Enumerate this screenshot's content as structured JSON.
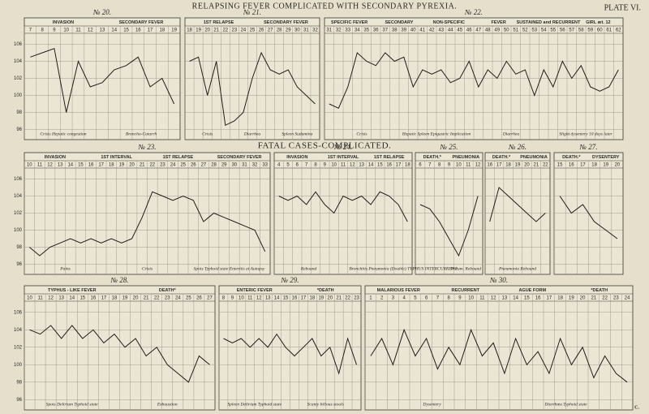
{
  "title": "RELAPSING FEVER COMPLICATED WITH SECONDARY PYREXIA.",
  "plate": "PLATE VI.",
  "subtitle": "FATAL CASES-COMPLICATED.",
  "signature": "H. V. C.",
  "chart_data": [
    {
      "type": "line",
      "title": "№ 20.",
      "phases": [
        "INVASION",
        "SECONDARY FEVER"
      ],
      "categories": [
        "7",
        "8",
        "9",
        "10",
        "11",
        "12",
        "13",
        "14",
        "15",
        "16",
        "17",
        "18",
        "19"
      ],
      "values": [
        104.5,
        105,
        105.5,
        98,
        104,
        101,
        101.5,
        103,
        103.5,
        104.5,
        101,
        102,
        99
      ],
      "annotations": [
        "Crisis  Hepatic congestion",
        "Broncho-Catarrh"
      ],
      "ylim": [
        95,
        107
      ],
      "yticks": [
        96,
        98,
        100,
        102,
        104,
        106
      ],
      "ytick_labels": true
    },
    {
      "type": "line",
      "title": "№ 21.",
      "phases": [
        "1ST RELAPSE",
        "SECONDARY FEVER"
      ],
      "categories": [
        "18",
        "19",
        "20",
        "21",
        "22",
        "23",
        "24",
        "25",
        "26",
        "27",
        "28",
        "29",
        "30",
        "31",
        "32"
      ],
      "values": [
        104,
        104.5,
        100,
        104,
        96.5,
        97,
        98,
        102,
        105,
        103,
        102.5,
        103,
        101,
        100,
        99
      ],
      "annotations": [
        "Crisis",
        "Diarrhea",
        "Spleen  Sudamina"
      ],
      "ylim": [
        95,
        107
      ],
      "yticks": [
        96,
        98,
        100,
        102,
        104,
        106
      ],
      "ytick_labels": false
    },
    {
      "type": "line",
      "title": "№ 22.",
      "phases": [
        "SPECIFIC FEVER",
        "SECONDARY",
        "NON-SPECIFIC",
        "FEVER",
        "SUSTAINED and RECURRENT",
        "GIRL æt. 12"
      ],
      "categories": [
        "31",
        "32",
        "33",
        "34",
        "35",
        "36",
        "37",
        "38",
        "39",
        "40",
        "41",
        "42",
        "43",
        "44",
        "45",
        "46",
        "47",
        "48",
        "49",
        "50",
        "51",
        "52",
        "53",
        "54",
        "55",
        "56",
        "57",
        "58",
        "59",
        "60",
        "61",
        "62"
      ],
      "values": [
        99,
        98.5,
        101,
        105,
        104,
        103.5,
        105,
        104,
        104.5,
        101,
        103,
        102.5,
        103,
        101.5,
        102,
        104,
        101,
        103,
        102,
        104,
        102.5,
        103,
        100,
        103,
        101,
        104,
        102,
        103.5,
        101,
        100.5,
        101,
        103
      ],
      "annotations": [
        "Crisis",
        "Hepatic  Spleen  Epigastric  Implication",
        "Diarrhea",
        "Slight dysentery 10 days later"
      ],
      "ylim": [
        95,
        107
      ],
      "yticks": [
        96,
        98,
        100,
        102,
        104,
        106
      ],
      "ytick_labels": false
    },
    {
      "type": "line",
      "title": "№ 23.",
      "phases": [
        "INVASION",
        "1ST INTERVAL",
        "1ST RELAPSE",
        "SECONDARY FEVER"
      ],
      "categories": [
        "10",
        "11",
        "12",
        "13",
        "14",
        "15",
        "16",
        "17",
        "18",
        "19",
        "20",
        "21",
        "22",
        "23",
        "24",
        "25",
        "26",
        "27",
        "28",
        "29",
        "30",
        "31",
        "32",
        "33"
      ],
      "values": [
        98,
        97,
        98,
        98.5,
        99,
        98.5,
        99,
        98.5,
        99,
        98.5,
        99,
        101.5,
        104.5,
        104,
        103.5,
        104,
        103.5,
        101,
        102,
        101.5,
        101,
        100.5,
        100,
        97.5
      ],
      "annotations": [
        "Pains",
        "Crisis",
        "Spots  Typhoid state  Enteritis at Autopsy"
      ],
      "ylim": [
        95,
        107
      ],
      "yticks": [
        96,
        98,
        100,
        102,
        104,
        106
      ],
      "ytick_labels": true
    },
    {
      "type": "line",
      "title": "№ 24.",
      "phases": [
        "INVASION",
        "1ST INTERVAL",
        "1ST RELAPSE"
      ],
      "categories": [
        "4",
        "5",
        "6",
        "7",
        "8",
        "9",
        "10",
        "11",
        "12",
        "13",
        "14",
        "15",
        "16",
        "17",
        "18"
      ],
      "values": [
        104,
        103.5,
        104,
        103,
        104.5,
        103,
        102,
        104,
        103.5,
        104,
        103,
        104.5,
        104,
        103,
        101
      ],
      "annotations": [
        "Rebound",
        "Bronchitis  Pneumonia (Double)"
      ],
      "ylim": [
        95,
        107
      ],
      "yticks": [
        96,
        98,
        100,
        102,
        104,
        106
      ],
      "ytick_labels": false
    },
    {
      "type": "line",
      "title": "№ 25.",
      "phases": [
        "DEATH.*",
        "PNEUMONIA"
      ],
      "categories": [
        "6",
        "7",
        "8",
        "9",
        "10",
        "11",
        "12"
      ],
      "values": [
        103,
        102.5,
        101,
        99,
        97,
        100,
        104
      ],
      "annotations": [
        "TYPHUS INTERCURRENT",
        "Pneum. Rebound"
      ],
      "ylim": [
        95,
        107
      ],
      "yticks": [
        96,
        98,
        100,
        102,
        104,
        106
      ],
      "ytick_labels": false
    },
    {
      "type": "line",
      "title": "№ 26.",
      "phases": [
        "DEATH.*",
        "PNEUMONIA"
      ],
      "categories": [
        "16",
        "17",
        "18",
        "19",
        "20",
        "21",
        "22"
      ],
      "values": [
        101,
        105,
        104,
        103,
        102,
        101,
        102
      ],
      "annotations": [
        "Pneumonia  Rebound"
      ],
      "ylim": [
        95,
        107
      ],
      "yticks": [
        96,
        98,
        100,
        102,
        104,
        106
      ],
      "ytick_labels": false
    },
    {
      "type": "line",
      "title": "№ 27.",
      "phases": [
        "DEATH.*",
        "DYSENTERY"
      ],
      "categories": [
        "15",
        "16",
        "17",
        "18",
        "19",
        "20"
      ],
      "values": [
        104,
        102,
        103,
        101,
        100,
        99
      ],
      "annotations": [],
      "ylim": [
        95,
        107
      ],
      "yticks": [
        96,
        98,
        100,
        102,
        104,
        106
      ],
      "ytick_labels": false
    },
    {
      "type": "line",
      "title": "№ 28.",
      "phases": [
        "TYPHUS - LIKE FEVER",
        "DEATH*"
      ],
      "categories": [
        "10",
        "11",
        "12",
        "13",
        "14",
        "15",
        "16",
        "17",
        "18",
        "19",
        "20",
        "21",
        "22",
        "23",
        "24",
        "25",
        "26",
        "27"
      ],
      "values": [
        104,
        103.5,
        104.5,
        103,
        104.5,
        103,
        104,
        102.5,
        103.5,
        102,
        103,
        101,
        102,
        100,
        99,
        98,
        101,
        100
      ],
      "annotations": [
        "Spots  Delirium  Typhoid state",
        "Exhaustion"
      ],
      "ylim": [
        95,
        107
      ],
      "yticks": [
        96,
        98,
        100,
        102,
        104,
        106
      ],
      "ytick_labels": true
    },
    {
      "type": "line",
      "title": "№ 29.",
      "phases": [
        "ENTERIC FEVER",
        "*DEATH"
      ],
      "categories": [
        "8",
        "9",
        "10",
        "11",
        "12",
        "13",
        "14",
        "15",
        "16",
        "17",
        "18",
        "19",
        "20",
        "21",
        "22",
        "23"
      ],
      "values": [
        103,
        102.5,
        103,
        102,
        103,
        102,
        103.5,
        102,
        101,
        102,
        103,
        101,
        102,
        99,
        103,
        100
      ],
      "annotations": [
        "Spleen  Delirium  Typhoid state",
        "Scanty bilious stools"
      ],
      "ylim": [
        95,
        107
      ],
      "yticks": [
        96,
        98,
        100,
        102,
        104,
        106
      ],
      "ytick_labels": false
    },
    {
      "type": "line",
      "title": "№ 30.",
      "phases": [
        "MALARIOUS FEVER",
        "RECURRENT",
        "AGUE FORM",
        "*DEATH"
      ],
      "categories": [
        "1",
        "2",
        "3",
        "4",
        "5",
        "6",
        "7",
        "8",
        "9",
        "10",
        "11",
        "12",
        "13",
        "14",
        "15",
        "16",
        "17",
        "18",
        "19",
        "20",
        "21",
        "22",
        "23",
        "24"
      ],
      "values": [
        101,
        103,
        100,
        104,
        101,
        103,
        99.5,
        102,
        100,
        104,
        101,
        102.5,
        99,
        103,
        100,
        101.5,
        99,
        103,
        100,
        102,
        98.5,
        101,
        99,
        98
      ],
      "annotations": [
        "Dysentery",
        "Diarrhœa  Typhoid state"
      ],
      "ylim": [
        95,
        107
      ],
      "yticks": [
        96,
        98,
        100,
        102,
        104,
        106
      ],
      "ytick_labels": false
    }
  ]
}
